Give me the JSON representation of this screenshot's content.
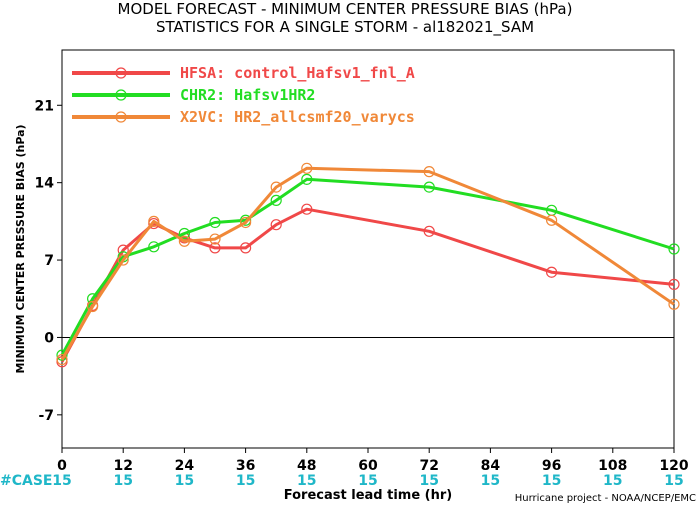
{
  "chart_data": {
    "type": "line",
    "title": "MODEL FORECAST - MINIMUM CENTER PRESSURE BIAS (hPa)",
    "subtitle": "STATISTICS FOR A SINGLE STORM - al182021_SAM",
    "xlabel": "Forecast lead time (hr)",
    "ylabel": "MINIMUM CENTER PRESSURE BIAS (hPa)",
    "xlim": [
      0,
      120
    ],
    "ylim": [
      -10,
      26
    ],
    "xticks": [
      0,
      12,
      24,
      36,
      48,
      60,
      72,
      84,
      96,
      108,
      120
    ],
    "yticks": [
      -7,
      0,
      7,
      14,
      21
    ],
    "zero_line": true,
    "legend_placement": "top-left",
    "case_label": "#CASE",
    "case_counts": [
      15,
      15,
      15,
      15,
      15,
      15,
      15,
      15,
      15,
      15,
      15
    ],
    "series": [
      {
        "name": "HFSA: control_Hafsv1_fnl_A",
        "color": "#f04848",
        "x": [
          0,
          6,
          12,
          18,
          24,
          30,
          36,
          42,
          48,
          72,
          96,
          120
        ],
        "values": [
          -2.2,
          2.9,
          7.9,
          10.3,
          9.0,
          8.1,
          8.1,
          10.2,
          11.6,
          9.6,
          5.9,
          4.8
        ]
      },
      {
        "name": "CHR2: Hafsv1HR2",
        "color": "#22dd22",
        "x": [
          0,
          6,
          12,
          18,
          24,
          30,
          36,
          42,
          48,
          72,
          96,
          120
        ],
        "values": [
          -1.6,
          3.5,
          7.3,
          8.2,
          9.4,
          10.4,
          10.6,
          12.4,
          14.3,
          13.6,
          11.5,
          8.0
        ]
      },
      {
        "name": "X2VC: HR2_allcsmf20_varycs",
        "color": "#f08838",
        "x": [
          0,
          6,
          12,
          18,
          24,
          30,
          36,
          42,
          48,
          72,
          96,
          120
        ],
        "values": [
          -2.0,
          2.8,
          7.0,
          10.5,
          8.7,
          8.9,
          10.4,
          13.6,
          15.3,
          15.0,
          10.6,
          3.0
        ]
      }
    ]
  },
  "credit": "Hurricane project - NOAA/NCEP/EMC"
}
